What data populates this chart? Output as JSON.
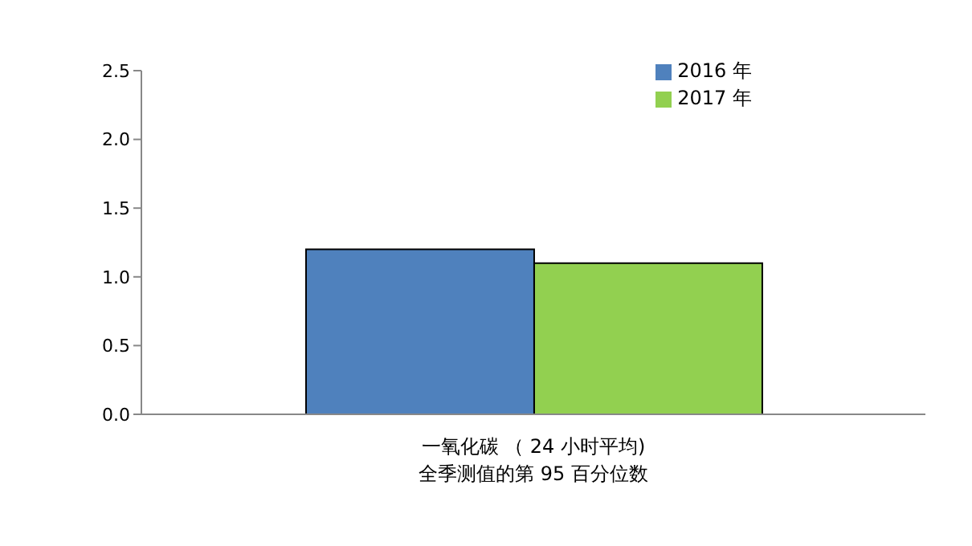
{
  "chart_data": {
    "type": "bar",
    "categories": [
      "一氧化碳 （ 24 小时平均)\n全季测值的第 95 百分位数"
    ],
    "series": [
      {
        "name": "2016 年",
        "color": "#4f81bd",
        "values": [
          1.2
        ]
      },
      {
        "name": "2017 年",
        "color": "#92d050",
        "values": [
          1.1
        ]
      }
    ],
    "ylim": [
      0,
      2.5
    ],
    "yticks": [
      {
        "value": 0,
        "label": "0.0"
      },
      {
        "value": 0.5,
        "label": "0.5"
      },
      {
        "value": 1,
        "label": "1.0"
      },
      {
        "value": 1.5,
        "label": "1.5"
      },
      {
        "value": 2,
        "label": "2.0"
      },
      {
        "value": 2.5,
        "label": "2.5"
      }
    ],
    "grid": false,
    "legend": "top right"
  }
}
